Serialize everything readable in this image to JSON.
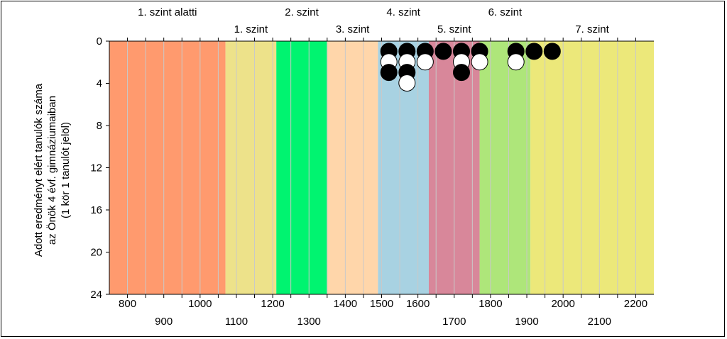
{
  "chart_data": {
    "type": "scatter",
    "title": "",
    "ylabel_lines": [
      "Adott eredményt elért tanulók száma",
      "az Önök 4 évf. gimnáziumaiban",
      "(1 kör 1 tanulót jelöl)"
    ],
    "xlim": [
      750,
      2250
    ],
    "ylim": [
      0,
      24
    ],
    "y_inverted": true,
    "y_ticks": [
      0,
      4,
      8,
      12,
      16,
      20,
      24
    ],
    "x_ticks_upper": [
      800,
      1000,
      1200,
      1400,
      1500,
      1600,
      1800,
      2000,
      2200
    ],
    "x_ticks_lower": [
      900,
      1100,
      1300,
      1700,
      1900,
      2100
    ],
    "x_gridlines": [
      800,
      850,
      900,
      950,
      1000,
      1050,
      1100,
      1150,
      1200,
      1250,
      1300,
      1350,
      1400,
      1450,
      1500,
      1550,
      1600,
      1650,
      1700,
      1750,
      1800,
      1850,
      1900,
      1950,
      2000,
      2050,
      2100,
      2150,
      2200
    ],
    "levels": [
      {
        "label": "1. szint alatti",
        "from": 750,
        "to": 1070,
        "color": "#ff9a6e",
        "label_row": "top"
      },
      {
        "label": "1. szint",
        "from": 1070,
        "to": 1210,
        "color": "#ede28a",
        "label_row": "bottom"
      },
      {
        "label": "2. szint",
        "from": 1210,
        "to": 1350,
        "color": "#00f470",
        "label_row": "top"
      },
      {
        "label": "3. szint",
        "from": 1350,
        "to": 1490,
        "color": "#ffd6aa",
        "label_row": "bottom"
      },
      {
        "label": "4. szint",
        "from": 1490,
        "to": 1630,
        "color": "#a8d2e2",
        "label_row": "top"
      },
      {
        "label": "5. szint",
        "from": 1630,
        "to": 1770,
        "color": "#d8879a",
        "label_row": "bottom"
      },
      {
        "label": "6. szint",
        "from": 1770,
        "to": 1910,
        "color": "#aee67a",
        "label_row": "top"
      },
      {
        "label": "7. szint",
        "from": 1910,
        "to": 2250,
        "color": "#ece87a",
        "label_row": "bottom"
      }
    ],
    "series": [
      {
        "fill": "#000000",
        "points": [
          {
            "x": 1520,
            "y": 1
          },
          {
            "x": 1520,
            "y": 3
          },
          {
            "x": 1570,
            "y": 1
          },
          {
            "x": 1570,
            "y": 3
          },
          {
            "x": 1620,
            "y": 1
          },
          {
            "x": 1670,
            "y": 1
          },
          {
            "x": 1720,
            "y": 1
          },
          {
            "x": 1720,
            "y": 3
          },
          {
            "x": 1770,
            "y": 1
          },
          {
            "x": 1870,
            "y": 1
          },
          {
            "x": 1920,
            "y": 1
          },
          {
            "x": 1970,
            "y": 1
          }
        ]
      },
      {
        "fill": "#ffffff",
        "points": [
          {
            "x": 1520,
            "y": 2
          },
          {
            "x": 1570,
            "y": 2
          },
          {
            "x": 1570,
            "y": 4
          },
          {
            "x": 1620,
            "y": 2
          },
          {
            "x": 1720,
            "y": 2
          },
          {
            "x": 1770,
            "y": 2
          },
          {
            "x": 1870,
            "y": 2
          }
        ]
      }
    ]
  }
}
